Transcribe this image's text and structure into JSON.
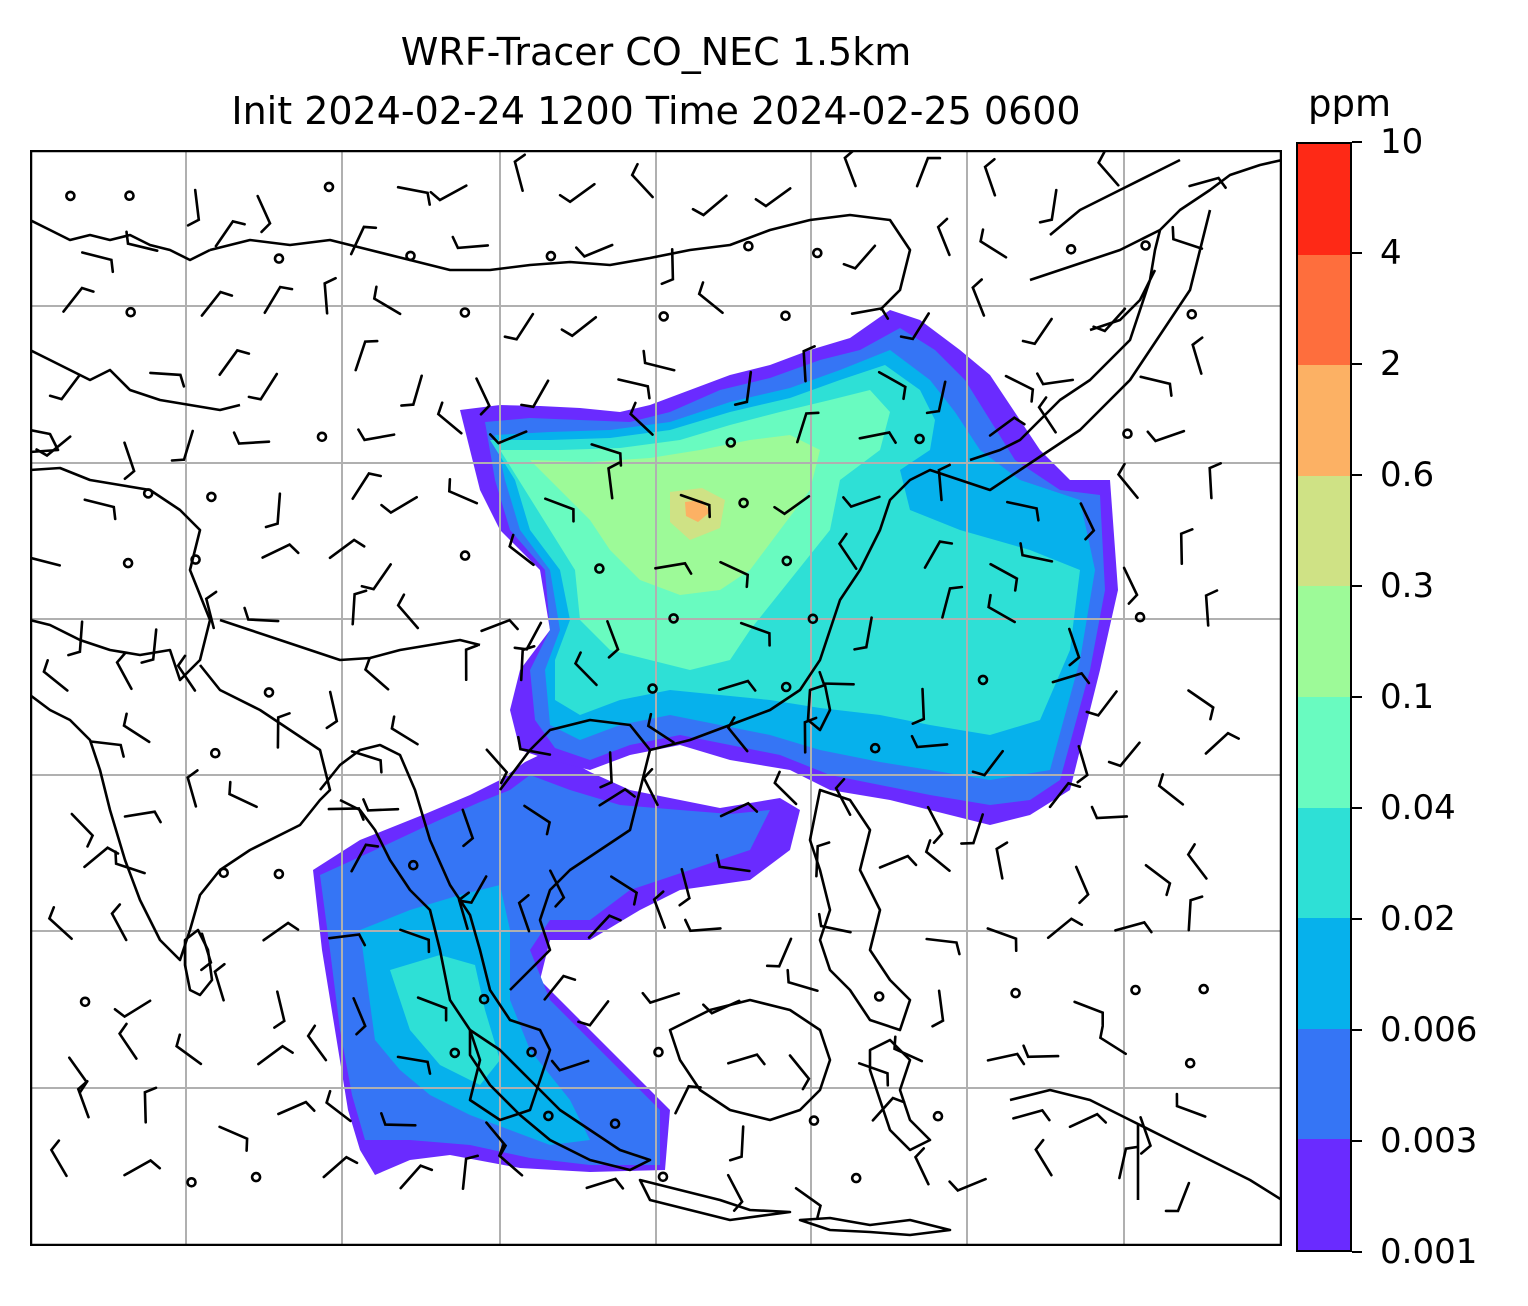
{
  "title": {
    "line1": "WRF-Tracer CO_NEC 1.5km",
    "line2": "Init 2024-02-24 1200 Time 2024-02-25 0600"
  },
  "colorbar": {
    "unit": "ppm",
    "tick_labels": [
      "0.001",
      "0.003",
      "0.006",
      "0.02",
      "0.04",
      "0.1",
      "0.3",
      "0.6",
      "2",
      "4",
      "10"
    ],
    "colors": [
      "#6a2bff",
      "#3575f5",
      "#06b1ec",
      "#2ee0d6",
      "#69fbc0",
      "#9dfa98",
      "#cfe285",
      "#fcb164",
      "#fe6e3d",
      "#fe2916"
    ]
  },
  "map": {
    "gridlines": true,
    "gridline_color": "#b0b0b0",
    "coastline_color": "#000000",
    "wind_barbs": true
  }
}
